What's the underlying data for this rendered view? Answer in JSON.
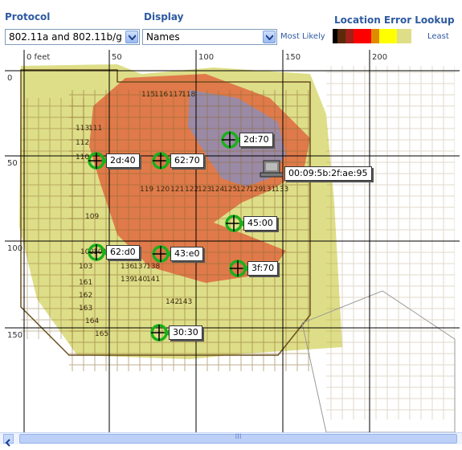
{
  "protocol": {
    "label": "Protocol",
    "value": "802.11a and 802.11b/g"
  },
  "display": {
    "label": "Display",
    "value": "Names"
  },
  "legend": {
    "title": "Location Error Lookup",
    "most_likely": "Most Likely",
    "least": "Least",
    "colors": [
      "#000000",
      "#5a2a0a",
      "#a0201a",
      "#ff0000",
      "#e08a00",
      "#ffff00",
      "#dede88"
    ]
  },
  "map": {
    "x_ticks": [
      "0 feet",
      "50",
      "100",
      "150",
      "200"
    ],
    "y_ticks": [
      "0",
      "50",
      "100",
      "150"
    ],
    "heat_colors": {
      "outer": "#dede88",
      "mid": "#e07a4a",
      "inner": "#9a8aa6"
    },
    "room_labels": [
      "115",
      "116",
      "117",
      "118",
      "119",
      "120",
      "121",
      "122",
      "123",
      "124",
      "125",
      "127",
      "129",
      "131",
      "133",
      "113",
      "112",
      "110",
      "111",
      "109",
      "102",
      "101",
      "100",
      "103",
      "136",
      "137",
      "138",
      "139",
      "140",
      "141",
      "142",
      "143",
      "161",
      "162",
      "163",
      "164",
      "165"
    ],
    "devices": [
      {
        "name": "2d:70"
      },
      {
        "name": "2d:40"
      },
      {
        "name": "62:70"
      },
      {
        "name": "45:00"
      },
      {
        "name": "62:d0"
      },
      {
        "name": "43:e0"
      },
      {
        "name": "3f:70"
      },
      {
        "name": "30:30"
      }
    ],
    "client": {
      "name": "00:09:5b:2f:ae:95"
    }
  },
  "scrollbar": {
    "thumb_glyph": "III"
  }
}
